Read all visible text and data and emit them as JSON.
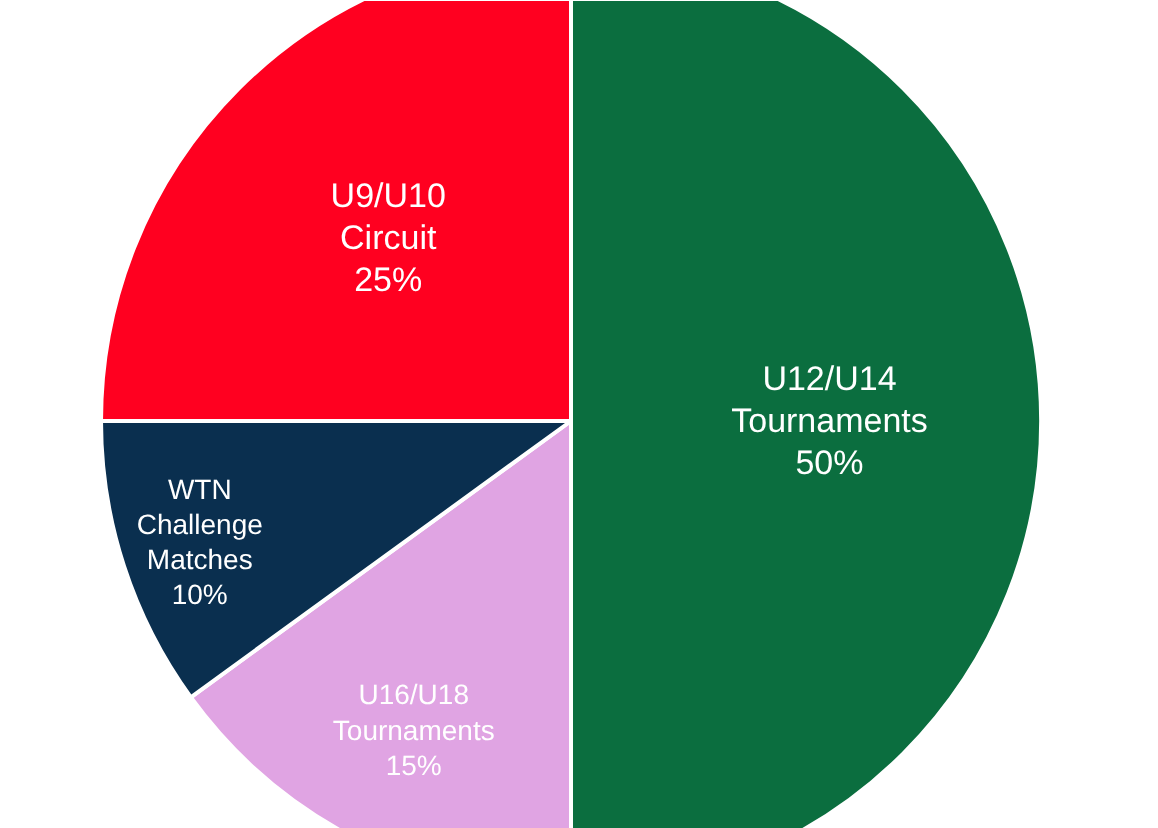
{
  "chart_data": {
    "type": "pie",
    "categories": [
      "U12/U14 Tournaments",
      "U16/U18 Tournaments",
      "WTN Challenge Matches",
      "U9/U10 Circuit"
    ],
    "values": [
      50,
      15,
      10,
      25
    ],
    "colors": [
      "#0b6e3f",
      "#e0a4e3",
      "#0a2f4f",
      "#ff0020"
    ],
    "value_labels": [
      "50%",
      "15%",
      "10%",
      "25%"
    ]
  }
}
